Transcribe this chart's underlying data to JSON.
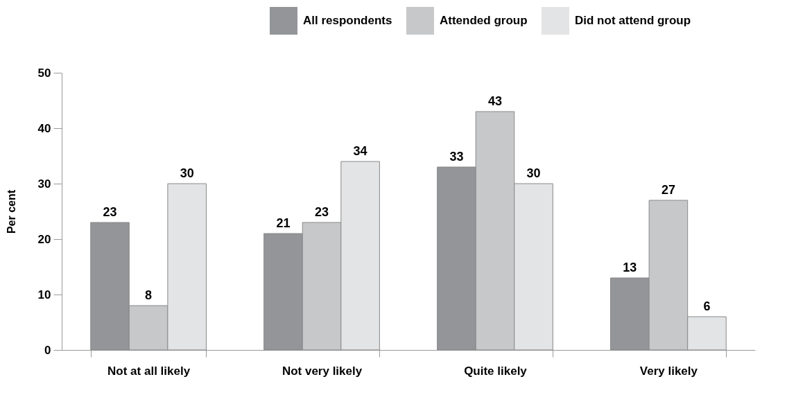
{
  "chart_data": {
    "type": "bar",
    "ylabel": "Per cent",
    "categories": [
      "Not at all likely",
      "Not very likely",
      "Quite likely",
      "Very likely"
    ],
    "series": [
      {
        "name": "All respondents",
        "color": "#939598",
        "values": [
          23,
          21,
          33,
          13
        ]
      },
      {
        "name": "Attended group",
        "color": "#c7c8ca",
        "values": [
          8,
          23,
          43,
          27
        ]
      },
      {
        "name": "Did not attend group",
        "color": "#e3e4e5",
        "values": [
          30,
          34,
          30,
          6
        ]
      }
    ],
    "ylim": [
      0,
      50
    ],
    "yticks": [
      0,
      10,
      20,
      30,
      40,
      50
    ],
    "grid": false,
    "legend": "top right",
    "data_labels": true
  }
}
